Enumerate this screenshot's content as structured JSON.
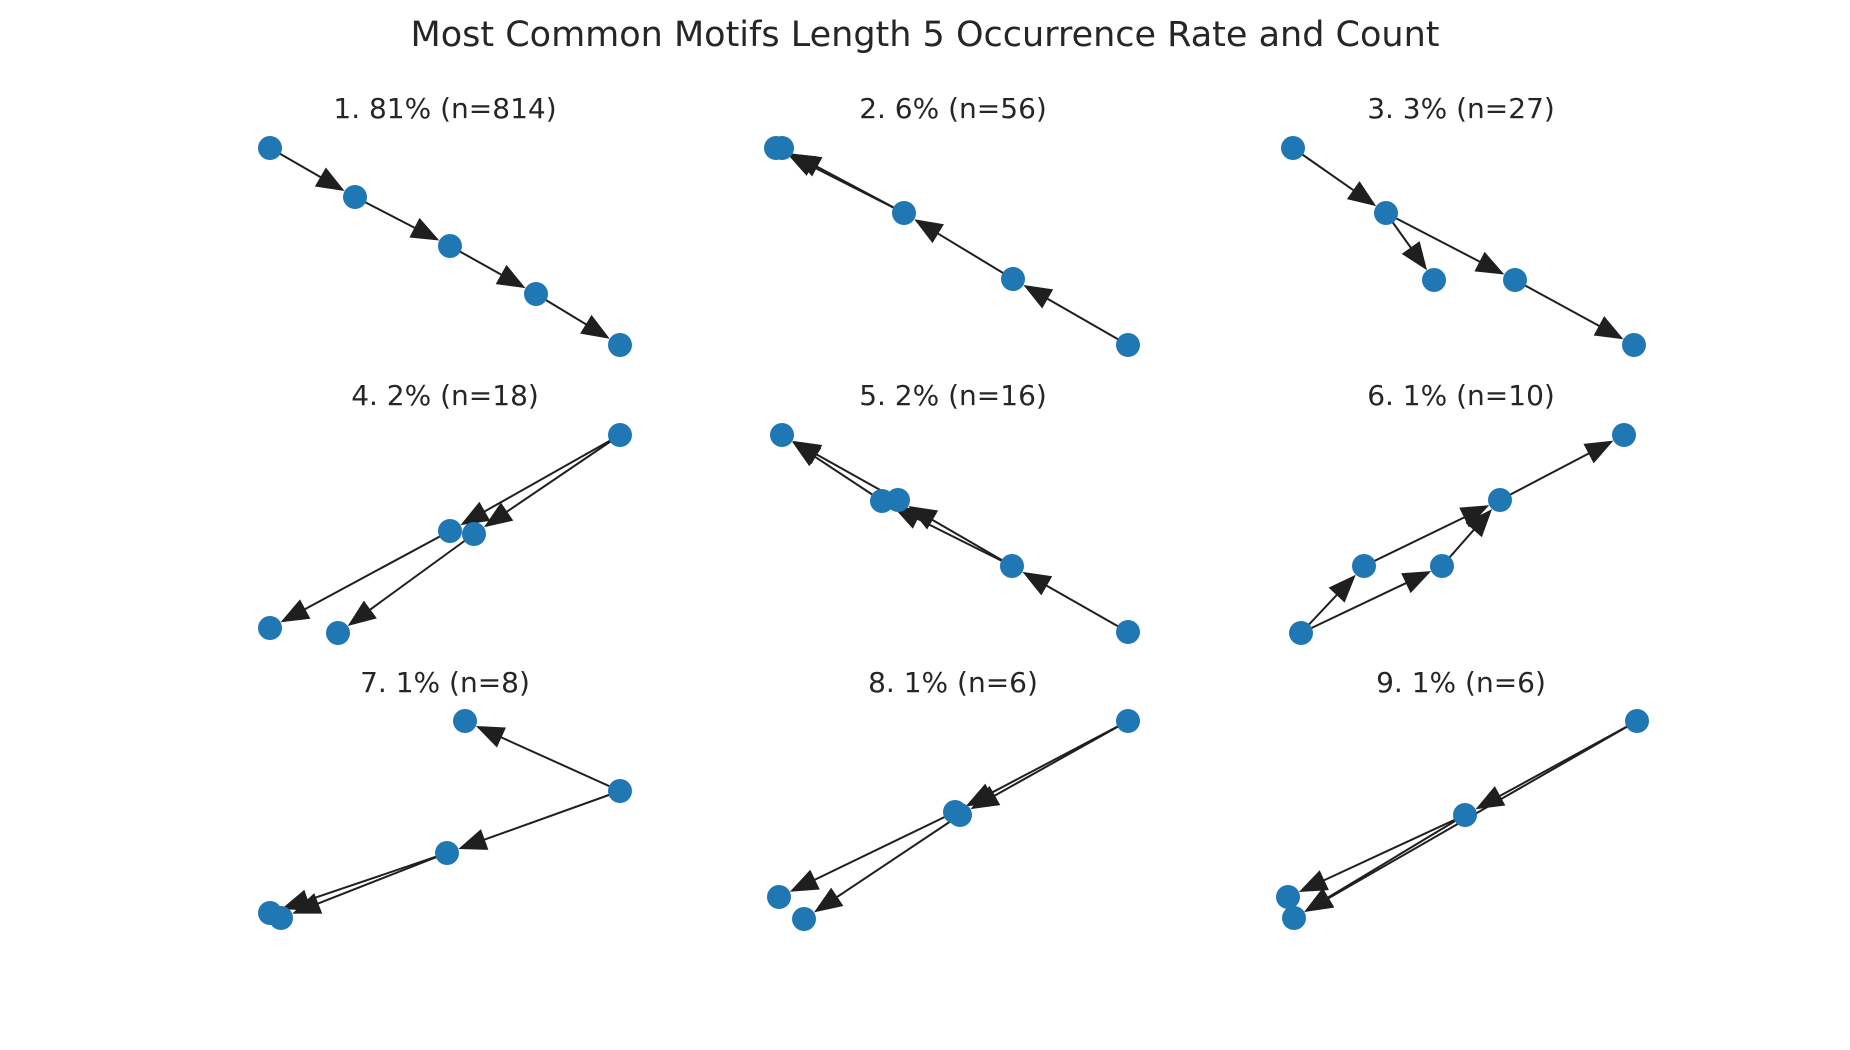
{
  "figure": {
    "title": "Most Common Motifs Length 5 Occurrence Rate and Count"
  },
  "colors": {
    "node": "#1f77b4",
    "edge": "#1f1f1f",
    "text": "#262626",
    "background": "#ffffff"
  },
  "panels": [
    {
      "title": "1. 81% (n=814)"
    },
    {
      "title": "2. 6% (n=56)"
    },
    {
      "title": "3. 3% (n=27)"
    },
    {
      "title": "4. 2% (n=18)"
    },
    {
      "title": "5. 2% (n=16)"
    },
    {
      "title": "6. 1% (n=10)"
    },
    {
      "title": "7. 1% (n=8)"
    },
    {
      "title": "8. 1% (n=6)"
    },
    {
      "title": "9. 1% (n=6)"
    }
  ]
}
